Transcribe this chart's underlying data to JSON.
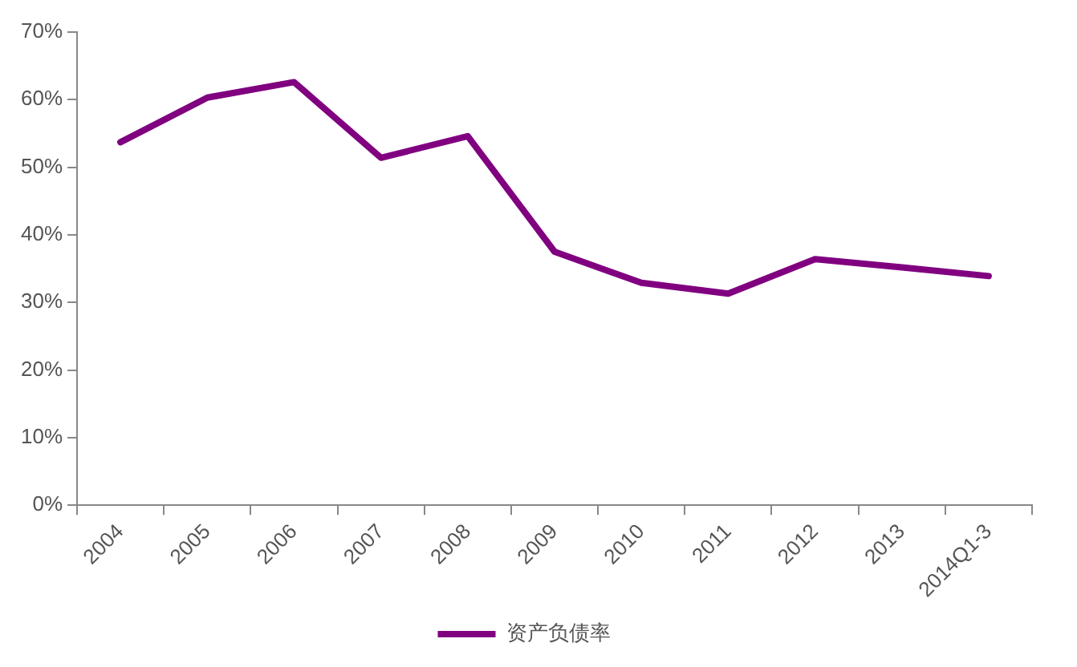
{
  "chart_data": {
    "type": "line",
    "categories": [
      "2004",
      "2005",
      "2006",
      "2007",
      "2008",
      "2009",
      "2010",
      "2011",
      "2012",
      "2013",
      "2014Q1-3"
    ],
    "series": [
      {
        "name": "资产负债率",
        "color": "#800080",
        "values": [
          53.7,
          60.3,
          62.6,
          51.4,
          54.6,
          37.5,
          32.9,
          31.3,
          36.4,
          35.2,
          33.9
        ]
      }
    ],
    "ylim": [
      0,
      70
    ],
    "yticks": [
      {
        "value": 0,
        "label": "0%"
      },
      {
        "value": 10,
        "label": "10%"
      },
      {
        "value": 20,
        "label": "20%"
      },
      {
        "value": 30,
        "label": "30%"
      },
      {
        "value": 40,
        "label": "40%"
      },
      {
        "value": 50,
        "label": "50%"
      },
      {
        "value": 60,
        "label": "60%"
      },
      {
        "value": 70,
        "label": "70%"
      }
    ],
    "grid": false,
    "legend": "bottom",
    "marker": "none",
    "line_style": "solid"
  }
}
